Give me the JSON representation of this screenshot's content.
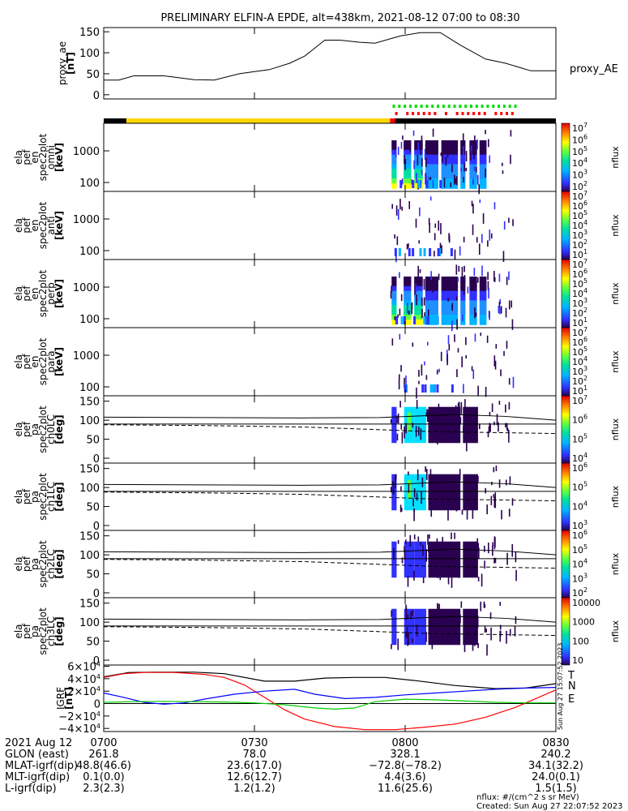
{
  "chart_data": {
    "type": "spectrogram",
    "title": "PRELIMINARY ELFIN-A EPDE, alt=438km, 2021-08-12 07:00 to 08:30",
    "ae_panel": {
      "ylabel": [
        "proxy_ae",
        "[nT]"
      ],
      "yticks": [
        "150",
        "100",
        "50",
        "0"
      ],
      "ylim": [
        -10,
        160
      ],
      "series_label": "proxy_AE",
      "x_minutes": [
        0,
        3,
        6,
        12,
        18,
        22,
        27,
        33,
        37,
        40,
        44,
        47,
        51,
        54,
        59,
        63,
        67,
        71,
        76,
        80,
        85,
        90
      ],
      "values": [
        35,
        35,
        45,
        45,
        36,
        35,
        50,
        60,
        75,
        92,
        130,
        130,
        125,
        123,
        140,
        148,
        148,
        118,
        85,
        75,
        57,
        57
      ]
    },
    "spec_panels": [
      {
        "ylabel": [
          "ela",
          "pef",
          "en",
          "spec2plot",
          "omni",
          "[keV]"
        ],
        "yticks": [
          "1000",
          "100"
        ],
        "zticks": [
          "10^7",
          "10^6",
          "10^5",
          "10^4",
          "10^3",
          "10^2"
        ],
        "zlabel": "nflux"
      },
      {
        "ylabel": [
          "ela",
          "pef",
          "en",
          "spec2plot",
          "anti",
          "[keV]"
        ],
        "yticks": [
          "1000",
          "100"
        ],
        "zticks": [
          "10^7",
          "10^6",
          "10^5",
          "10^4",
          "10^3",
          "10^2",
          "10^1"
        ],
        "zlabel": "nflux"
      },
      {
        "ylabel": [
          "ela",
          "pef",
          "en",
          "spec2plot",
          "perp",
          "[keV]"
        ],
        "yticks": [
          "1000",
          "100"
        ],
        "zticks": [
          "10^7",
          "10^6",
          "10^5",
          "10^4",
          "10^3",
          "10^2",
          "10^1"
        ],
        "zlabel": "nflux"
      },
      {
        "ylabel": [
          "ela",
          "pef",
          "en",
          "spec2plot",
          "para",
          "[keV]"
        ],
        "yticks": [
          "1000",
          "100"
        ],
        "zticks": [
          "10^7",
          "10^6",
          "10^5",
          "10^4",
          "10^3",
          "10^2",
          "10^1"
        ],
        "zlabel": "nflux"
      }
    ],
    "pa_panels": [
      {
        "ylabel": [
          "ela",
          "pef",
          "pa",
          "spec2plot",
          "ch0LC",
          "[deg]"
        ],
        "yticks": [
          "150",
          "100",
          "50",
          "0"
        ],
        "zticks": [
          "10^7",
          "10^6",
          "10^5",
          "10^4"
        ],
        "zlabel": "nflux"
      },
      {
        "ylabel": [
          "ela",
          "pef",
          "pa",
          "spec2plot",
          "ch1LC",
          "[deg]"
        ],
        "yticks": [
          "150",
          "100",
          "50",
          "0"
        ],
        "zticks": [
          "10^6",
          "10^5",
          "10^4",
          "10^3"
        ],
        "zlabel": "nflux"
      },
      {
        "ylabel": [
          "ela",
          "pef",
          "pa",
          "spec2plot",
          "ch2LC",
          "[deg]"
        ],
        "yticks": [
          "150",
          "100",
          "50",
          "0"
        ],
        "zticks": [
          "10^6",
          "10^5",
          "10^4",
          "10^3",
          "10^2"
        ],
        "zlabel": "nflux"
      },
      {
        "ylabel": [
          "ela",
          "pef",
          "pa",
          "spec2plot",
          "ch3LC",
          "[deg]"
        ],
        "yticks": [
          "150",
          "100",
          "50",
          "0"
        ],
        "zticks": [
          "10000",
          "1000",
          "100",
          "10"
        ],
        "zlabel": "nflux"
      }
    ],
    "igrf_panel": {
      "ylabel": [
        "IGRF",
        "[nT]"
      ],
      "yticks": [
        "6×10^4",
        "4×10^4",
        "2×10^4",
        "0",
        "−2×10^4",
        "−4×10^4"
      ],
      "ylim": [
        -45000,
        62000
      ],
      "series": [
        {
          "name": "T",
          "color": "#000000",
          "x_minutes": [
            0,
            5,
            10,
            18,
            24,
            32,
            38,
            44,
            50,
            56,
            62,
            70,
            78,
            84,
            90
          ],
          "values": [
            43000,
            50000,
            50500,
            50500,
            48000,
            36000,
            36000,
            41000,
            42000,
            42000,
            37000,
            29000,
            24000,
            25000,
            32000
          ]
        },
        {
          "name": "N",
          "color": "#ff0000",
          "x_minutes": [
            0,
            4,
            8,
            14,
            20,
            24,
            28,
            32,
            36,
            40,
            46,
            52,
            58,
            64,
            70,
            76,
            82,
            86,
            90
          ],
          "values": [
            42000,
            48000,
            50000,
            50000,
            47000,
            42000,
            30000,
            10000,
            -10000,
            -25000,
            -37000,
            -42000,
            -42000,
            -38000,
            -33000,
            -22000,
            -6000,
            8000,
            22000
          ]
        },
        {
          "name": "",
          "color": "#0000ff",
          "x_minutes": [
            0,
            4,
            8,
            12,
            16,
            20,
            26,
            32,
            38,
            42,
            48,
            54,
            60,
            66,
            72,
            78,
            84,
            90
          ],
          "values": [
            17000,
            10000,
            2000,
            -1000,
            1000,
            7000,
            15000,
            20000,
            23000,
            15000,
            8000,
            10000,
            14000,
            17000,
            20000,
            23000,
            25000,
            26000
          ]
        },
        {
          "name": "E",
          "color": "#00cc00",
          "x_minutes": [
            0,
            6,
            12,
            18,
            24,
            30,
            36,
            42,
            46,
            50,
            54,
            60,
            66,
            72,
            78,
            84,
            90
          ],
          "values": [
            2000,
            3000,
            3500,
            3000,
            2500,
            1000,
            -2000,
            -7000,
            -9000,
            -7000,
            3000,
            7000,
            6000,
            4000,
            2000,
            1000,
            1000
          ]
        }
      ]
    },
    "x_ticks": [
      "0700",
      "0730",
      "0800",
      "0830"
    ],
    "x_range_minutes": [
      0,
      90
    ],
    "annotation_table": [
      {
        "label": "2021 Aug 12",
        "values": [
          "0700",
          "0730",
          "0800",
          "0830"
        ]
      },
      {
        "label": "GLON (east)",
        "values": [
          "261.8",
          "78.0",
          "328.1",
          "240.2"
        ]
      },
      {
        "label": "MLAT-igrf(dip)",
        "values": [
          "48.8(46.6)",
          "23.6(17.0)",
          "−72.8(−78.2)",
          "34.1(32.2)"
        ]
      },
      {
        "label": "MLT-igrf(dip)",
        "values": [
          "0.1(0.0)",
          "12.6(12.7)",
          "4.4(3.6)",
          "24.0(0.1)"
        ]
      },
      {
        "label": "L-igrf(dip)",
        "values": [
          "2.3(2.3)",
          "1.2(1.2)",
          "11.6(25.6)",
          "1.5(1.5)"
        ]
      }
    ],
    "footer": [
      "nflux: #/(cm^2 s sr MeV)",
      "Created: Sun Aug 27 22:07:52 2023"
    ],
    "side_stamp": "Sun Aug 27 15:07:52 2023"
  }
}
